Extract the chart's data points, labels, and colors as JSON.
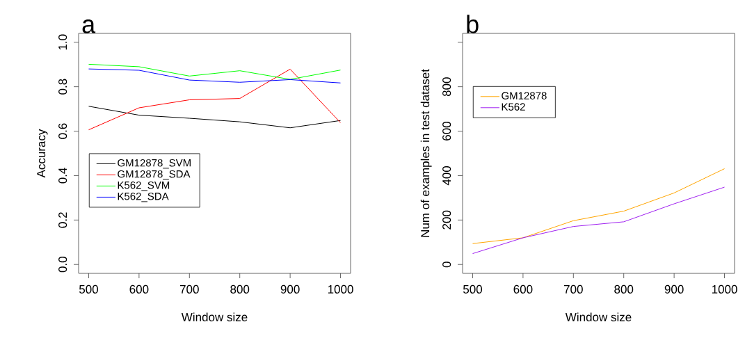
{
  "chart_data": [
    {
      "type": "line",
      "annotations": [
        "a"
      ],
      "xlabel": "Window size",
      "ylabel": "Accuracy",
      "x": [
        500,
        600,
        700,
        800,
        900,
        1000
      ],
      "xlim": [
        480,
        1020
      ],
      "ylim": [
        -0.04,
        1.04
      ],
      "xticks": [
        500,
        600,
        700,
        800,
        900,
        1000
      ],
      "yticks": [
        {
          "value": 0,
          "label": "0.0"
        },
        {
          "value": 0.2,
          "label": "0.2"
        },
        {
          "value": 0.4,
          "label": "0.4"
        },
        {
          "value": 0.6,
          "label": "0.6"
        },
        {
          "value": 0.8,
          "label": "0.8"
        },
        {
          "value": 1,
          "label": "1.0"
        }
      ],
      "legend": "left",
      "series": [
        {
          "name": "GM12878_SVM",
          "color": "#000000",
          "values": [
            0.712,
            0.672,
            0.658,
            0.642,
            0.615,
            0.648
          ]
        },
        {
          "name": "GM12878_SDA",
          "color": "#ff0000",
          "values": [
            0.606,
            0.705,
            0.741,
            0.747,
            0.879,
            0.638
          ]
        },
        {
          "name": "K562_SVM",
          "color": "#00ff00",
          "values": [
            0.901,
            0.89,
            0.848,
            0.872,
            0.833,
            0.875
          ]
        },
        {
          "name": "K562_SDA",
          "color": "#0000ff",
          "values": [
            0.88,
            0.874,
            0.83,
            0.82,
            0.832,
            0.817
          ]
        }
      ]
    },
    {
      "type": "line",
      "annotations": [
        "b"
      ],
      "xlabel": "Window size",
      "ylabel": "Num of examples in test dataset",
      "x": [
        500,
        600,
        700,
        800,
        900,
        1000
      ],
      "xlim": [
        480,
        1020
      ],
      "ylim": [
        -40,
        1040
      ],
      "xticks": [
        500,
        600,
        700,
        800,
        900,
        1000
      ],
      "yticks": [
        0,
        200,
        400,
        600,
        800,
        {
          "value": 1000,
          "label": null
        }
      ],
      "legend": "top left",
      "series": [
        {
          "name": "GM12878",
          "color": "#ffa500",
          "values": [
            94,
            120,
            197,
            240,
            322,
            431
          ]
        },
        {
          "name": "K562",
          "color": "#a020f0",
          "values": [
            49,
            120,
            171,
            192,
            273,
            348
          ]
        }
      ]
    }
  ]
}
